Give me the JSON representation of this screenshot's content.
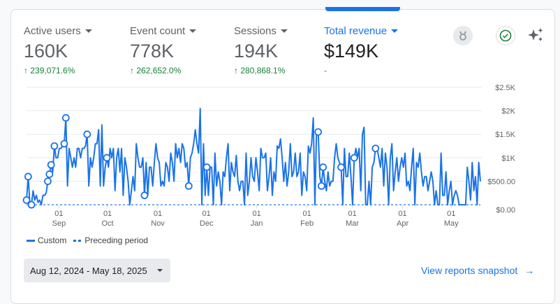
{
  "metrics": [
    {
      "label": "Active users",
      "value": "160K",
      "change": "239,071.6%"
    },
    {
      "label": "Event count",
      "value": "778K",
      "change": "262,652.0%"
    },
    {
      "label": "Sessions",
      "value": "194K",
      "change": "280,868.1%"
    },
    {
      "label": "Total revenue",
      "value": "$149K",
      "change": "-"
    }
  ],
  "icons": {
    "medal": "medal-icon",
    "check": "check-circle-icon",
    "sparkle": "sparkle-icon"
  },
  "legend": {
    "custom": "Custom",
    "preceding": "Preceding period"
  },
  "date_range": "Aug 12, 2024 - May 18, 2025",
  "snapshot_link": "View reports snapshot",
  "chart_data": {
    "type": "line",
    "ylim": [
      0,
      2500
    ],
    "y_ticks": [
      "$0.00",
      "$500.00",
      "$1K",
      "$1.5K",
      "$2K",
      "$2.5K"
    ],
    "y_tick_values": [
      0,
      500,
      1000,
      1500,
      2000,
      2500
    ],
    "x_ticks": [
      {
        "day": "01",
        "month": "Sep"
      },
      {
        "day": "01",
        "month": "Oct"
      },
      {
        "day": "01",
        "month": "Nov"
      },
      {
        "day": "01",
        "month": "Dec"
      },
      {
        "day": "01",
        "month": "Jan"
      },
      {
        "day": "01",
        "month": "Feb"
      },
      {
        "day": "01",
        "month": "Mar"
      },
      {
        "day": "01",
        "month": "Apr"
      },
      {
        "day": "01",
        "month": "May"
      }
    ],
    "x_tick_positions": [
      20,
      50,
      81,
      111,
      142,
      173,
      201,
      232,
      262
    ],
    "x_days": 280,
    "series": [
      {
        "name": "Custom",
        "values": [
          100,
          600,
          50,
          0,
          300,
          100,
          200,
          50,
          100,
          0,
          200,
          200,
          250,
          500,
          650,
          850,
          700,
          1250,
          1000,
          1000,
          1200,
          1200,
          1250,
          1300,
          1850,
          400,
          1200,
          1000,
          800,
          1000,
          800,
          1200,
          1200,
          1000,
          1200,
          1200,
          1250,
          1500,
          400,
          1000,
          800,
          1000,
          1300,
          1300,
          1600,
          400,
          1700,
          400,
          800,
          1000,
          800,
          1200,
          1000,
          1200,
          300,
          1000,
          1200,
          700,
          1200,
          200,
          1000,
          800,
          500,
          0,
          300,
          600,
          300,
          1300,
          1000,
          800,
          800,
          1000,
          200,
          900,
          200,
          800,
          800,
          400,
          900,
          1300,
          1000,
          900,
          400,
          500,
          400,
          900,
          800,
          500,
          1100,
          900,
          500,
          1300,
          1000,
          1200,
          900,
          1300,
          1200,
          800,
          900,
          400,
          1000,
          1100,
          1300,
          1600,
          1300,
          1100,
          2050,
          0,
          1300,
          200,
          800,
          200,
          800,
          800,
          0,
          1100,
          400,
          700,
          500,
          0,
          700,
          600,
          1000,
          1300,
          300,
          900,
          700,
          600,
          1050,
          500,
          300,
          500,
          500,
          0,
          1100,
          200,
          500,
          1000,
          600,
          500,
          1000,
          700,
          300,
          1200,
          1000,
          1000,
          1100,
          300,
          600,
          1000,
          200,
          700,
          500,
          1250,
          1200,
          1400,
          1000,
          500,
          900,
          400,
          700,
          1300,
          600,
          700,
          1100,
          600,
          700,
          1100,
          200,
          700,
          600,
          300,
          1250,
          1100,
          1300,
          1850,
          0,
          1600,
          1550,
          600,
          400,
          800,
          500,
          300,
          700,
          400,
          500,
          500,
          1000,
          1300,
          1000,
          900,
          800,
          0,
          1200,
          600,
          600,
          1100,
          600,
          0,
          1000,
          1200,
          1000,
          1200,
          300,
          1500,
          1650,
          0,
          0,
          500,
          0,
          800,
          900,
          1200,
          1200,
          1000,
          800,
          1200,
          400,
          1100,
          800,
          0,
          1000,
          1300,
          300,
          700,
          1000,
          500,
          800,
          1000,
          800,
          1100,
          400,
          500,
          300,
          800,
          1200,
          0,
          900,
          800,
          1100,
          700,
          400,
          600,
          600,
          300,
          500,
          700,
          500,
          0,
          300,
          0,
          0,
          1100,
          200,
          200,
          700,
          0,
          300,
          500,
          0,
          200,
          300,
          200,
          0,
          0,
          0,
          0,
          0,
          800,
          500,
          100,
          900,
          300,
          600,
          0,
          900,
          500
        ]
      },
      {
        "name": "Preceding period",
        "values": [
          0
        ]
      }
    ],
    "anomaly_indices": [
      0,
      1,
      3,
      13,
      14,
      15,
      17,
      23,
      24,
      37,
      49,
      72,
      99,
      110,
      178,
      180,
      181,
      192,
      200,
      213
    ]
  }
}
